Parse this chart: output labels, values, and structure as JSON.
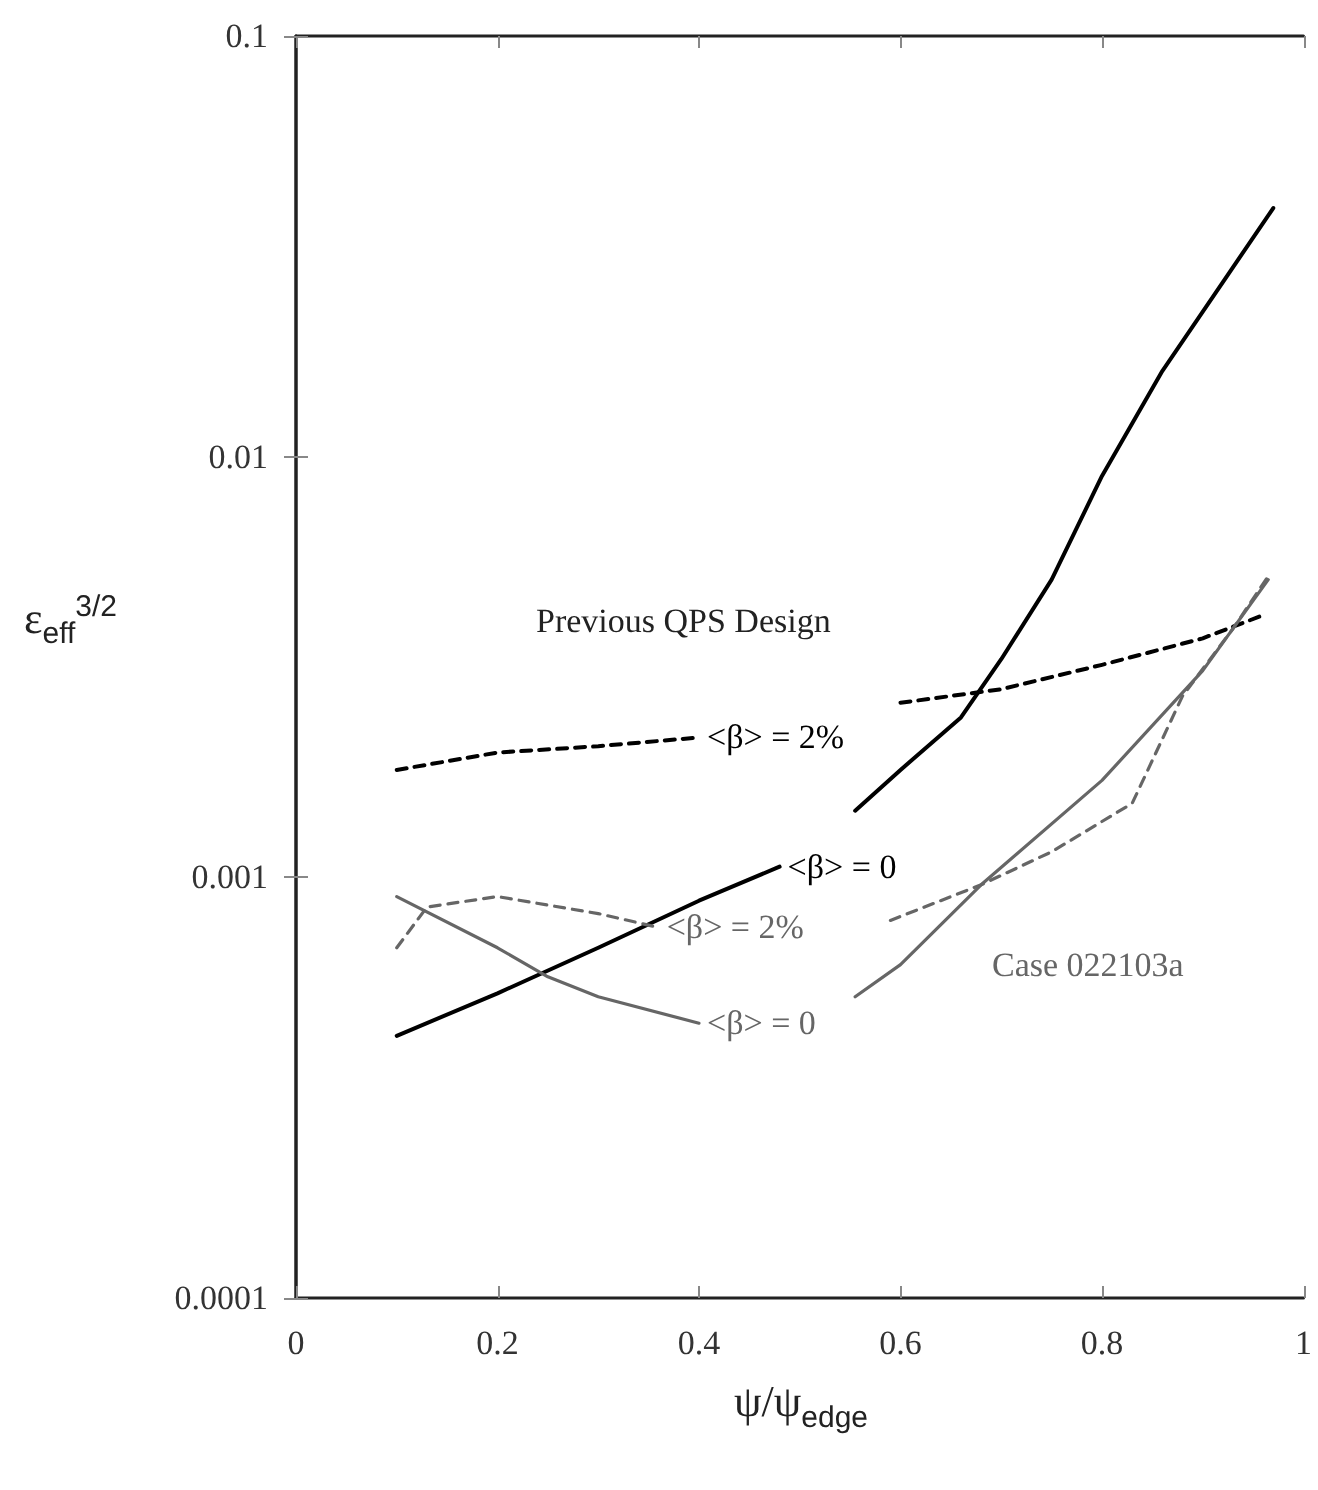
{
  "chart_data": {
    "type": "line",
    "xlabel": "ψ/ψ$_{edge}$",
    "ylabel": "ε$_{eff}$$^{3/2}$",
    "log": "y",
    "xlim": [
      0,
      1
    ],
    "xticks": [
      0,
      0.2,
      0.4,
      0.6,
      0.8,
      1
    ],
    "ylim": [
      0.0001,
      0.1
    ],
    "yticks": [
      0.0001,
      0.001,
      0.01,
      0.1
    ],
    "grid": false,
    "marker": "none",
    "series": [
      {
        "name": "<β> = 0",
        "color": "#000000",
        "line_style": "solid",
        "x": [
          0.1,
          0.2,
          0.3,
          0.4,
          0.48,
          0.52,
          0.555,
          0.6,
          0.66,
          0.7,
          0.75,
          0.8,
          0.86,
          0.92,
          0.97
        ],
        "values": [
          0.00042,
          0.00053,
          0.00068,
          0.00088,
          0.00106,
          null,
          0.00144,
          0.0018,
          0.0024,
          0.0033,
          0.0051,
          0.009,
          0.016,
          0.026,
          0.039
        ]
      },
      {
        "name": "<β> = 2%",
        "color": "#000000",
        "line_style": "dashed",
        "x": [
          0.1,
          0.2,
          0.3,
          0.4,
          0.5,
          0.6,
          0.7,
          0.8,
          0.9,
          0.96
        ],
        "values": [
          0.0018,
          0.00198,
          0.00205,
          0.00215,
          null,
          0.0026,
          0.0028,
          0.0032,
          0.0037,
          0.0042
        ]
      },
      {
        "name": "<β> = 0",
        "color": "#666666",
        "line_style": "solid",
        "x": [
          0.1,
          0.2,
          0.25,
          0.3,
          0.4,
          0.48,
          0.555,
          0.6,
          0.68,
          0.8,
          0.9,
          0.965
        ],
        "values": [
          0.0009,
          0.00068,
          0.00058,
          0.00052,
          0.00045,
          null,
          0.00052,
          0.00062,
          0.00096,
          0.0017,
          0.0031,
          0.0051
        ]
      },
      {
        "name": "<β> = 2%",
        "color": "#666666",
        "line_style": "dashed",
        "x": [
          0.1,
          0.13,
          0.2,
          0.3,
          0.36,
          0.45,
          0.59,
          0.68,
          0.75,
          0.83,
          0.88,
          0.93,
          0.965
        ],
        "values": [
          0.00068,
          0.00085,
          0.0009,
          0.00082,
          0.00076,
          null,
          0.00079,
          0.00096,
          0.00115,
          0.0015,
          0.0027,
          0.0039,
          0.0052
        ]
      }
    ],
    "annotations": [
      "Previous QPS Design",
      "Case 022103a"
    ]
  }
}
